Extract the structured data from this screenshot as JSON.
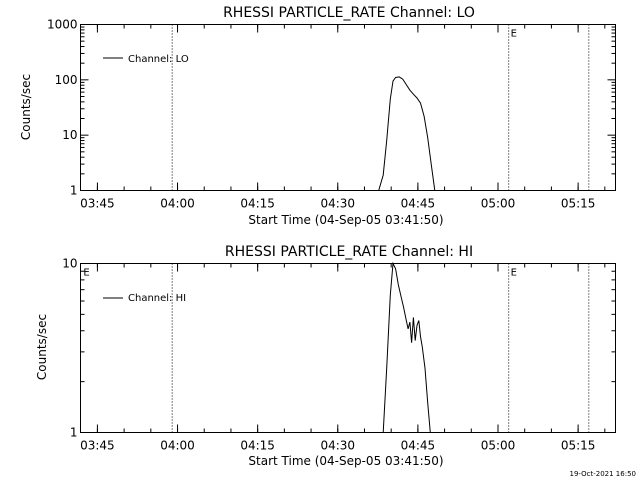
{
  "footer": {
    "timestamp": "19-Oct-2021 16:50"
  },
  "chart_data": [
    {
      "type": "line",
      "title": "RHESSI PARTICLE_RATE Channel: LO",
      "xlabel": "Start Time (04-Sep-05 03:41:50)",
      "ylabel": "Counts/sec",
      "yscale": "log",
      "ylim": [
        1,
        1000
      ],
      "xlim": [
        "03:41:50",
        "05:22:00"
      ],
      "x_ticks": [
        "03:45",
        "04:00",
        "04:15",
        "04:30",
        "04:45",
        "05:00",
        "05:15"
      ],
      "y_ticks": [
        "1",
        "10",
        "100",
        "1000"
      ],
      "legend": {
        "placement": "top-left",
        "entries": [
          "Channel: LO"
        ]
      },
      "flags": [
        {
          "label": "E",
          "x": "05:02:00"
        }
      ],
      "vlines": [
        "03:59:00",
        "05:02:00",
        "05:17:00"
      ],
      "series": [
        {
          "name": "Channel: LO",
          "x": [
            "04:37:40",
            "04:38:30",
            "04:39:10",
            "04:39:50",
            "04:40:20",
            "04:40:50",
            "04:41:30",
            "04:42:10",
            "04:42:50",
            "04:43:30",
            "04:44:10",
            "04:44:50",
            "04:45:30",
            "04:46:10",
            "04:46:50",
            "04:47:30",
            "04:48:10"
          ],
          "y": [
            1,
            1.9,
            8,
            45,
            95,
            110,
            113,
            103,
            82,
            65,
            55,
            47,
            38,
            22,
            9,
            3,
            1
          ]
        }
      ]
    },
    {
      "type": "line",
      "title": "RHESSI PARTICLE_RATE Channel: HI",
      "xlabel": "Start Time (04-Sep-05 03:41:50)",
      "ylabel": "Counts/sec",
      "yscale": "log",
      "ylim": [
        1,
        10
      ],
      "xlim": [
        "03:41:50",
        "05:22:00"
      ],
      "x_ticks": [
        "03:45",
        "04:00",
        "04:15",
        "04:30",
        "04:45",
        "05:00",
        "05:15"
      ],
      "y_ticks": [
        "1",
        "10"
      ],
      "legend": {
        "placement": "top-left",
        "entries": [
          "Channel: HI"
        ]
      },
      "flags": [
        {
          "label": "E",
          "x": "03:42:00"
        },
        {
          "label": "E",
          "x": "05:02:00"
        }
      ],
      "vlines": [
        "03:59:00",
        "05:02:00",
        "05:17:00"
      ],
      "series": [
        {
          "name": "Channel: HI",
          "x": [
            "04:38:30",
            "04:39:10",
            "04:39:50",
            "04:40:20",
            "04:40:50",
            "04:41:20",
            "04:41:50",
            "04:42:20",
            "04:42:50",
            "04:43:10",
            "04:43:30",
            "04:43:50",
            "04:44:10",
            "04:44:30",
            "04:44:50",
            "04:45:10",
            "04:45:30",
            "04:45:50",
            "04:46:20",
            "04:46:50",
            "04:47:20"
          ],
          "y": [
            1,
            2.4,
            6.5,
            10,
            9.3,
            7.5,
            6.4,
            5.5,
            4.6,
            4.1,
            4.5,
            3.4,
            4.8,
            3.5,
            4.3,
            4.6,
            3.7,
            3.2,
            2.4,
            1.5,
            1
          ]
        }
      ]
    }
  ]
}
